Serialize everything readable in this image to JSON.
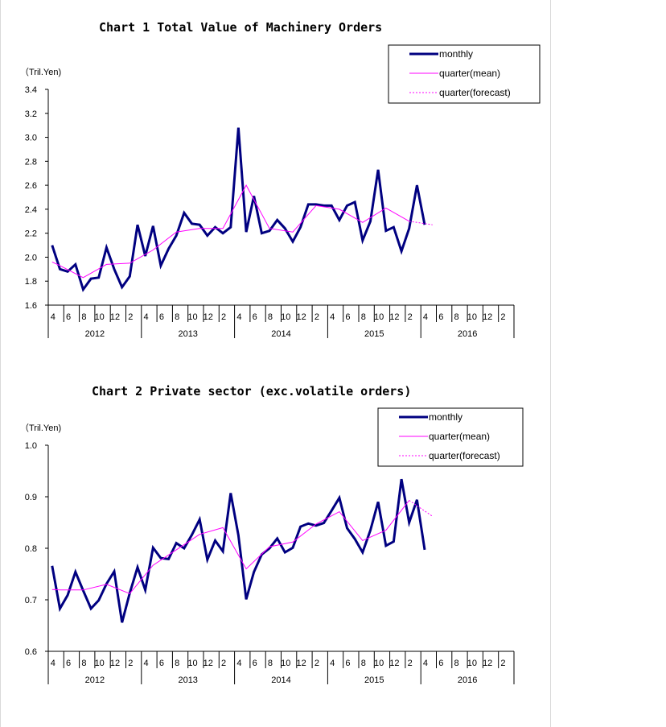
{
  "colors": {
    "monthly": "#000080",
    "quarter": "#ff00ff",
    "axis": "#000000",
    "frame": "#d9d9d9"
  },
  "legend": {
    "monthly": "monthly",
    "mean": "quarter(mean)",
    "forecast": "quarter(forecast)"
  },
  "chart_data": [
    {
      "type": "line",
      "title": "Chart 1 Total Value of Machinery Orders",
      "ylabel": "（Tril.Yen)",
      "ylim": [
        1.6,
        3.4
      ],
      "yticks": [
        "1.6",
        "1.8",
        "2.0",
        "2.2",
        "2.4",
        "2.6",
        "2.8",
        "3.0",
        "3.2",
        "3.4"
      ],
      "month_ticks": [
        "4",
        "6",
        "8",
        "10",
        "12",
        "2",
        "4",
        "6",
        "8",
        "10",
        "12",
        "2",
        "4",
        "6",
        "8",
        "10",
        "12",
        "2",
        "4",
        "6",
        "8",
        "10",
        "12",
        "2",
        "4",
        "6",
        "8",
        "10",
        "12",
        "2"
      ],
      "years": [
        "2012",
        "2013",
        "2014",
        "2015",
        "2016"
      ],
      "series": [
        {
          "name": "monthly",
          "x": [
            0,
            1,
            2,
            3,
            4,
            5,
            6,
            7,
            8,
            9,
            10,
            11,
            12,
            13,
            14,
            15,
            16,
            17,
            18,
            19,
            20,
            21,
            22,
            23,
            24,
            25,
            26,
            27,
            28,
            29,
            30,
            31,
            32,
            33,
            34,
            35,
            36,
            37,
            38,
            39,
            40,
            41,
            42,
            43,
            44,
            45,
            46,
            47,
            48
          ],
          "values": [
            2.1,
            1.9,
            1.88,
            1.94,
            1.73,
            1.82,
            1.83,
            2.08,
            1.9,
            1.75,
            1.84,
            2.27,
            2.01,
            2.26,
            1.93,
            2.07,
            2.18,
            2.37,
            2.28,
            2.27,
            2.18,
            2.25,
            2.2,
            2.25,
            3.08,
            2.21,
            2.51,
            2.2,
            2.22,
            2.31,
            2.24,
            2.13,
            2.25,
            2.44,
            2.44,
            2.43,
            2.43,
            2.31,
            2.43,
            2.46,
            2.14,
            2.3,
            2.73,
            2.22,
            2.25,
            2.05,
            2.24,
            2.6,
            2.27
          ]
        },
        {
          "name": "quarter(mean)",
          "x": [
            0,
            1,
            4,
            7,
            10,
            13,
            16,
            19,
            22,
            25,
            28,
            31,
            34,
            37,
            40,
            43,
            46
          ],
          "values": [
            1.96,
            1.93,
            1.83,
            1.94,
            1.95,
            2.06,
            2.21,
            2.24,
            2.24,
            2.6,
            2.24,
            2.21,
            2.43,
            2.4,
            2.29,
            2.41,
            2.3
          ]
        },
        {
          "name": "quarter(forecast)",
          "x": [
            46,
            49
          ],
          "values": [
            2.3,
            2.27
          ]
        }
      ]
    },
    {
      "type": "line",
      "title": "Chart 2 Private sector (exc.volatile orders)",
      "ylabel": "（Tril.Yen)",
      "ylim": [
        0.6,
        1.0
      ],
      "yticks": [
        "0.6",
        "0.7",
        "0.8",
        "0.9",
        "1.0"
      ],
      "month_ticks": [
        "4",
        "6",
        "8",
        "10",
        "12",
        "2",
        "4",
        "6",
        "8",
        "10",
        "12",
        "2",
        "4",
        "6",
        "8",
        "10",
        "12",
        "2",
        "4",
        "6",
        "8",
        "10",
        "12",
        "2",
        "4",
        "6",
        "8",
        "10",
        "12",
        "2"
      ],
      "years": [
        "2012",
        "2013",
        "2014",
        "2015",
        "2016"
      ],
      "series": [
        {
          "name": "monthly",
          "x": [
            0,
            1,
            2,
            3,
            4,
            5,
            6,
            7,
            8,
            9,
            10,
            11,
            12,
            13,
            14,
            15,
            16,
            17,
            18,
            19,
            20,
            21,
            22,
            23,
            24,
            25,
            26,
            27,
            28,
            29,
            30,
            31,
            32,
            33,
            34,
            35,
            36,
            37,
            38,
            39,
            40,
            41,
            42,
            43,
            44,
            45,
            46,
            47,
            48
          ],
          "values": [
            0.766,
            0.683,
            0.709,
            0.754,
            0.718,
            0.683,
            0.699,
            0.731,
            0.755,
            0.656,
            0.713,
            0.763,
            0.719,
            0.801,
            0.781,
            0.779,
            0.81,
            0.8,
            0.826,
            0.856,
            0.778,
            0.815,
            0.794,
            0.907,
            0.825,
            0.701,
            0.754,
            0.788,
            0.8,
            0.819,
            0.792,
            0.801,
            0.842,
            0.848,
            0.844,
            0.849,
            0.873,
            0.898,
            0.839,
            0.818,
            0.792,
            0.835,
            0.89,
            0.805,
            0.813,
            0.934,
            0.85,
            0.894,
            0.797
          ]
        },
        {
          "name": "quarter(mean)",
          "x": [
            0,
            1,
            4,
            7,
            10,
            13,
            16,
            19,
            22,
            25,
            28,
            31,
            34,
            37,
            40,
            43,
            46
          ],
          "values": [
            0.72,
            0.719,
            0.719,
            0.73,
            0.712,
            0.767,
            0.797,
            0.827,
            0.84,
            0.76,
            0.803,
            0.812,
            0.847,
            0.871,
            0.815,
            0.835,
            0.893
          ]
        },
        {
          "name": "quarter(forecast)",
          "x": [
            46,
            49
          ],
          "values": [
            0.893,
            0.862
          ]
        }
      ]
    }
  ]
}
